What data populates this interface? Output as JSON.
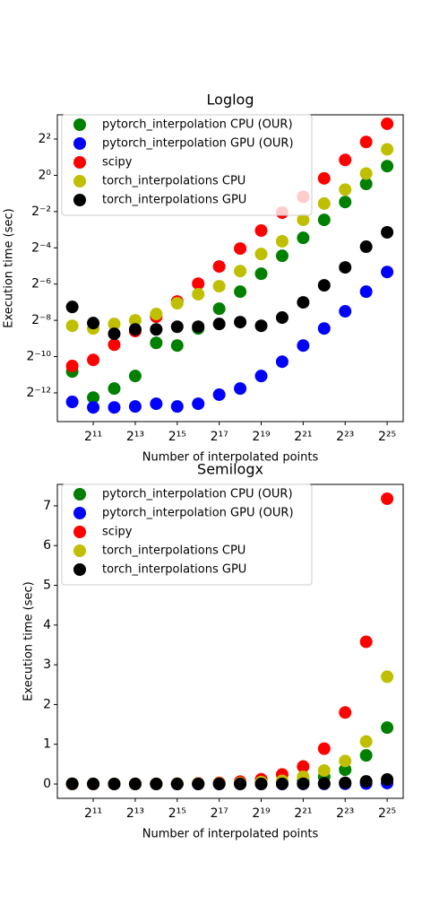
{
  "chart_data": [
    {
      "type": "scatter",
      "title": "Loglog",
      "xlabel": "Number of interpolated points",
      "ylabel": "Execution time (sec)",
      "xscale": "log",
      "yscale": "log",
      "legend": "upper left",
      "grid": false,
      "x": [
        1024,
        2048,
        4096,
        8192,
        16384,
        32768,
        65536,
        131072,
        262144,
        524288,
        1048576,
        2097152,
        4194304,
        8388608,
        16777216,
        33554432
      ],
      "xlim": [
        626,
        57000000
      ],
      "xticks": [
        {
          "value": 2048,
          "label": "2¹¹"
        },
        {
          "value": 8192,
          "label": "2¹³"
        },
        {
          "value": 32768,
          "label": "2¹⁵"
        },
        {
          "value": 131072,
          "label": "2¹⁷"
        },
        {
          "value": 524288,
          "label": "2¹⁹"
        },
        {
          "value": 2097152,
          "label": "2²¹"
        },
        {
          "value": 8388608,
          "label": "2²³"
        },
        {
          "value": 33554432,
          "label": "2²⁵"
        }
      ],
      "ylim": [
        8.14e-05,
        10.1
      ],
      "yticks": [
        {
          "value": 0.000244140625,
          "label": "2⁻¹²"
        },
        {
          "value": 0.0009765625,
          "label": "2⁻¹⁰"
        },
        {
          "value": 0.00390625,
          "label": "2⁻⁸"
        },
        {
          "value": 0.015625,
          "label": "2⁻⁶"
        },
        {
          "value": 0.0625,
          "label": "2⁻⁴"
        },
        {
          "value": 0.25,
          "label": "2⁻²"
        },
        {
          "value": 1,
          "label": "2⁰"
        },
        {
          "value": 4,
          "label": "2²"
        }
      ],
      "series": [
        {
          "name": "pytorch_interpolation CPU (OUR)",
          "color": "#008000",
          "values": [
            0.000553,
            0.000204,
            0.000288,
            0.000465,
            0.00165,
            0.00149,
            0.00286,
            0.00609,
            0.0117,
            0.0232,
            0.0461,
            0.0915,
            0.182,
            0.36,
            0.72,
            1.42
          ]
        },
        {
          "name": "pytorch_interpolation GPU (OUR)",
          "color": "#0000ff",
          "values": [
            0.000173,
            0.00014,
            0.00014,
            0.000145,
            0.000161,
            0.000145,
            0.000161,
            0.000228,
            0.000288,
            0.000465,
            0.000804,
            0.00149,
            0.00286,
            0.00552,
            0.0117,
            0.0248
          ]
        },
        {
          "name": "scipy",
          "color": "#ff0000",
          "values": [
            0.000681,
            0.000862,
            0.00154,
            0.00259,
            0.00449,
            0.00803,
            0.0159,
            0.0306,
            0.0608,
            0.121,
            0.24,
            0.44,
            0.89,
            1.8,
            3.58,
            7.18
          ]
        },
        {
          "name": "torch_interpolations CPU",
          "color": "#bfbf00",
          "values": [
            0.00317,
            0.00286,
            0.0034,
            0.00391,
            0.00498,
            0.0075,
            0.0106,
            0.0144,
            0.0257,
            0.0494,
            0.0802,
            0.182,
            0.34,
            0.58,
            1.07,
            2.7
          ]
        },
        {
          "name": "torch_interpolations GPU",
          "color": "#000000",
          "values": [
            0.00653,
            0.00352,
            0.00234,
            0.00276,
            0.00276,
            0.00306,
            0.00306,
            0.0034,
            0.00365,
            0.00317,
            0.00434,
            0.00776,
            0.0149,
            0.0296,
            0.0652,
            0.113
          ]
        }
      ]
    },
    {
      "type": "scatter",
      "title": "Semilogx",
      "xlabel": "Number of interpolated points",
      "ylabel": "Execution time (sec)",
      "xscale": "log",
      "yscale": "linear",
      "legend": "upper left",
      "grid": false,
      "x": [
        1024,
        2048,
        4096,
        8192,
        16384,
        32768,
        65536,
        131072,
        262144,
        524288,
        1048576,
        2097152,
        4194304,
        8388608,
        16777216,
        33554432
      ],
      "xlim": [
        626,
        57000000
      ],
      "xticks": [
        {
          "value": 2048,
          "label": "2¹¹"
        },
        {
          "value": 8192,
          "label": "2¹³"
        },
        {
          "value": 32768,
          "label": "2¹⁵"
        },
        {
          "value": 131072,
          "label": "2¹⁷"
        },
        {
          "value": 524288,
          "label": "2¹⁹"
        },
        {
          "value": 2097152,
          "label": "2²¹"
        },
        {
          "value": 8388608,
          "label": "2²³"
        },
        {
          "value": 33554432,
          "label": "2²⁵"
        }
      ],
      "ylim": [
        -0.36,
        7.54
      ],
      "yticks": [
        0,
        1,
        2,
        3,
        4,
        5,
        6,
        7
      ],
      "series": [
        {
          "name": "pytorch_interpolation CPU (OUR)",
          "color": "#008000",
          "values": [
            0.000553,
            0.000204,
            0.000288,
            0.000465,
            0.00165,
            0.00149,
            0.00286,
            0.00609,
            0.0117,
            0.0232,
            0.0461,
            0.0915,
            0.182,
            0.36,
            0.72,
            1.42
          ]
        },
        {
          "name": "pytorch_interpolation GPU (OUR)",
          "color": "#0000ff",
          "values": [
            0.000173,
            0.00014,
            0.00014,
            0.000145,
            0.000161,
            0.000145,
            0.000161,
            0.000228,
            0.000288,
            0.000465,
            0.000804,
            0.00149,
            0.00286,
            0.00552,
            0.0117,
            0.0248
          ]
        },
        {
          "name": "scipy",
          "color": "#ff0000",
          "values": [
            0.000681,
            0.000862,
            0.00154,
            0.00259,
            0.00449,
            0.00803,
            0.0159,
            0.0306,
            0.0608,
            0.121,
            0.24,
            0.44,
            0.89,
            1.8,
            3.58,
            7.18
          ]
        },
        {
          "name": "torch_interpolations CPU",
          "color": "#bfbf00",
          "values": [
            0.00317,
            0.00286,
            0.0034,
            0.00391,
            0.00498,
            0.0075,
            0.0106,
            0.0144,
            0.0257,
            0.0494,
            0.0802,
            0.182,
            0.34,
            0.58,
            1.07,
            2.7
          ]
        },
        {
          "name": "torch_interpolations GPU",
          "color": "#000000",
          "values": [
            0.00653,
            0.00352,
            0.00234,
            0.00276,
            0.00276,
            0.00306,
            0.00306,
            0.0034,
            0.00365,
            0.00317,
            0.00434,
            0.00776,
            0.0149,
            0.0296,
            0.0652,
            0.113
          ]
        }
      ]
    }
  ]
}
